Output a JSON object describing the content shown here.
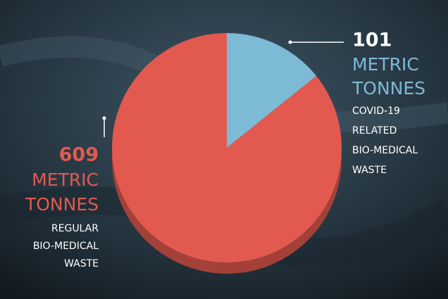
{
  "chart_data": {
    "type": "pie",
    "unit": "METRIC TONNES",
    "categories": [
      "COVID-19 RELATED BIO-MEDICAL WASTE",
      "REGULAR BIO-MEDICAL WASTE"
    ],
    "values": [
      101,
      609
    ],
    "colors": [
      "#7cbad6",
      "#e25a4f"
    ]
  }
}
